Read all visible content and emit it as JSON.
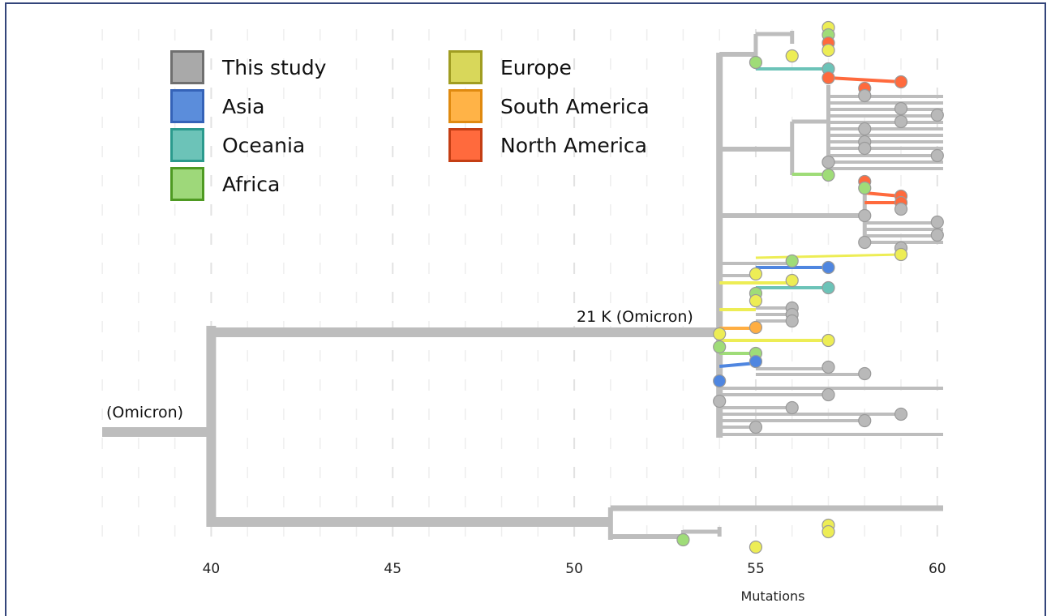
{
  "chart_data": {
    "type": "phylogenetic-tree",
    "title": "",
    "xlabel": "Mutations",
    "ylabel": "",
    "xlim": [
      37,
      60.3
    ],
    "xticks": [
      40,
      45,
      50,
      55,
      60
    ],
    "grid": true,
    "legend_placement": "top-left",
    "legend": [
      {
        "name": "This study",
        "fill": "#a9a9a9",
        "stroke": "#6f6f6f",
        "col": 0,
        "row": 0
      },
      {
        "name": "Asia",
        "fill": "#5b8ddb",
        "stroke": "#3563b8",
        "col": 0,
        "row": 1
      },
      {
        "name": "Oceania",
        "fill": "#6cc3b8",
        "stroke": "#2b9a8d",
        "col": 0,
        "row": 2
      },
      {
        "name": "Africa",
        "fill": "#9ed87a",
        "stroke": "#4e9a22",
        "col": 0,
        "row": 3
      },
      {
        "name": "Europe",
        "fill": "#d8d75a",
        "stroke": "#a09d22",
        "col": 1,
        "row": 0
      },
      {
        "name": "South America",
        "fill": "#ffb347",
        "stroke": "#e08a10",
        "col": 1,
        "row": 1
      },
      {
        "name": "North America",
        "fill": "#ff6a3d",
        "stroke": "#c43e14",
        "col": 1,
        "row": 2
      }
    ],
    "annotations": [
      {
        "text": "(Omicron)",
        "node": "root"
      },
      {
        "text": "21 K (Omicron)",
        "node": "21K"
      }
    ],
    "region_colors": {
      "study": "#b9b9b9",
      "asia": "#4f86e0",
      "oceania": "#6cc3b8",
      "africa": "#9fdc78",
      "europe": "#eded55",
      "southamerica": "#ffae42",
      "northamerica": "#ff6a3d"
    },
    "tips": [
      {
        "x": 57,
        "region": "europe"
      },
      {
        "x": 57,
        "region": "africa"
      },
      {
        "x": 57,
        "region": "northamerica"
      },
      {
        "x": 57,
        "region": "europe"
      },
      {
        "x": 56,
        "region": "europe"
      },
      {
        "x": 55,
        "region": "africa"
      },
      {
        "x": 57,
        "region": "oceania"
      },
      {
        "x": 57,
        "region": "northamerica"
      },
      {
        "x": 59,
        "region": "northamerica"
      },
      {
        "x": 58,
        "region": "northamerica"
      },
      {
        "x": 58,
        "region": "study"
      },
      {
        "x": 59,
        "region": "study"
      },
      {
        "x": 60,
        "region": "study"
      },
      {
        "x": 59,
        "region": "study"
      },
      {
        "x": 58,
        "region": "study"
      },
      {
        "x": 58,
        "region": "study"
      },
      {
        "x": 58,
        "region": "study"
      },
      {
        "x": 57,
        "region": "study"
      },
      {
        "x": 60,
        "region": "study"
      },
      {
        "x": 57,
        "region": "study"
      },
      {
        "x": 57,
        "region": "africa"
      },
      {
        "x": 58,
        "region": "northamerica"
      },
      {
        "x": 58,
        "region": "africa"
      },
      {
        "x": 59,
        "region": "northamerica"
      },
      {
        "x": 59,
        "region": "northamerica"
      },
      {
        "x": 58,
        "region": "study"
      },
      {
        "x": 59,
        "region": "study"
      },
      {
        "x": 60,
        "region": "study"
      },
      {
        "x": 60,
        "region": "study"
      },
      {
        "x": 58,
        "region": "study"
      },
      {
        "x": 59,
        "region": "study"
      },
      {
        "x": 59,
        "region": "europe"
      },
      {
        "x": 56,
        "region": "africa"
      },
      {
        "x": 57,
        "region": "asia"
      },
      {
        "x": 55,
        "region": "europe"
      },
      {
        "x": 56,
        "region": "europe"
      },
      {
        "x": 55,
        "region": "africa"
      },
      {
        "x": 57,
        "region": "oceania"
      },
      {
        "x": 55,
        "region": "europe"
      },
      {
        "x": 56,
        "region": "study"
      },
      {
        "x": 56,
        "region": "study"
      },
      {
        "x": 56,
        "region": "study"
      },
      {
        "x": 54,
        "region": "europe"
      },
      {
        "x": 55,
        "region": "southamerica"
      },
      {
        "x": 57,
        "region": "europe"
      },
      {
        "x": 54,
        "region": "africa"
      },
      {
        "x": 55,
        "region": "africa"
      },
      {
        "x": 55,
        "region": "asia"
      },
      {
        "x": 57,
        "region": "study"
      },
      {
        "x": 58,
        "region": "study"
      },
      {
        "x": 54,
        "region": "asia"
      },
      {
        "x": 57,
        "region": "study"
      },
      {
        "x": 54,
        "region": "study"
      },
      {
        "x": 56,
        "region": "study"
      },
      {
        "x": 59,
        "region": "study"
      },
      {
        "x": 58,
        "region": "study"
      },
      {
        "x": 55,
        "region": "study"
      },
      {
        "x": 57,
        "region": "europe"
      },
      {
        "x": 57,
        "region": "europe"
      },
      {
        "x": 53,
        "region": "africa"
      },
      {
        "x": 55,
        "region": "europe"
      }
    ]
  }
}
